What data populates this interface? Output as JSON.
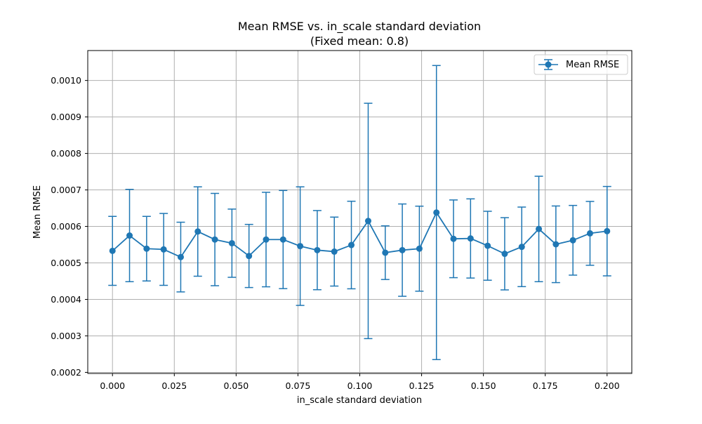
{
  "chart_data": {
    "type": "line",
    "title": "Mean RMSE vs. in_scale standard deviation",
    "subtitle": "(Fixed mean: 0.8)",
    "xlabel": "in_scale standard deviation",
    "ylabel": "Mean RMSE",
    "xlim": [
      -0.01,
      0.21
    ],
    "ylim": [
      0.000197,
      0.001082
    ],
    "grid": true,
    "legend_position": "top-right",
    "x_ticks": [
      0.0,
      0.025,
      0.05,
      0.075,
      0.1,
      0.125,
      0.15,
      0.175,
      0.2
    ],
    "x_tick_labels": [
      "0.000",
      "0.025",
      "0.050",
      "0.075",
      "0.100",
      "0.125",
      "0.150",
      "0.175",
      "0.200"
    ],
    "y_ticks": [
      0.0002,
      0.0003,
      0.0004,
      0.0005,
      0.0006,
      0.0007,
      0.0008,
      0.0009,
      0.001
    ],
    "y_tick_labels": [
      "0.0002",
      "0.0003",
      "0.0004",
      "0.0005",
      "0.0006",
      "0.0007",
      "0.0008",
      "0.0009",
      "0.0010"
    ],
    "series": [
      {
        "name": "Mean RMSE",
        "color": "#1f77b4",
        "marker": "circle",
        "error_bars": true,
        "x": [
          0.0,
          0.0069,
          0.0138,
          0.0207,
          0.0276,
          0.0345,
          0.0414,
          0.0483,
          0.0552,
          0.0621,
          0.069,
          0.0759,
          0.0828,
          0.0897,
          0.0966,
          0.1034,
          0.1103,
          0.1172,
          0.1241,
          0.131,
          0.1379,
          0.1448,
          0.1517,
          0.1586,
          0.1655,
          0.1724,
          0.1793,
          0.1862,
          0.1931,
          0.2
        ],
        "y": [
          0.000533,
          0.000575,
          0.000539,
          0.000537,
          0.000516,
          0.000586,
          0.000564,
          0.000554,
          0.000519,
          0.000564,
          0.000564,
          0.000546,
          0.000535,
          0.000531,
          0.000549,
          0.000615,
          0.000528,
          0.000535,
          0.000539,
          0.000638,
          0.000566,
          0.000567,
          0.000547,
          0.000525,
          0.000544,
          0.000593,
          0.000551,
          0.000562,
          0.000581,
          0.000587
        ],
        "yerr": [
          9.45e-05,
          0.0001265,
          8.85e-05,
          9.85e-05,
          9.55e-05,
          0.0001225,
          0.0001265,
          9.35e-05,
          8.65e-05,
          0.0001295,
          0.0001345,
          0.0001625,
          0.0001085,
          9.45e-05,
          0.00012,
          0.0003225,
          7.35e-05,
          0.0001265,
          0.0001165,
          0.000403,
          0.0001065,
          0.0001085,
          9.45e-05,
          9.9e-05,
          0.000109,
          0.0001445,
          0.000105,
          9.55e-05,
          8.75e-05,
          0.0001225
        ]
      }
    ]
  }
}
